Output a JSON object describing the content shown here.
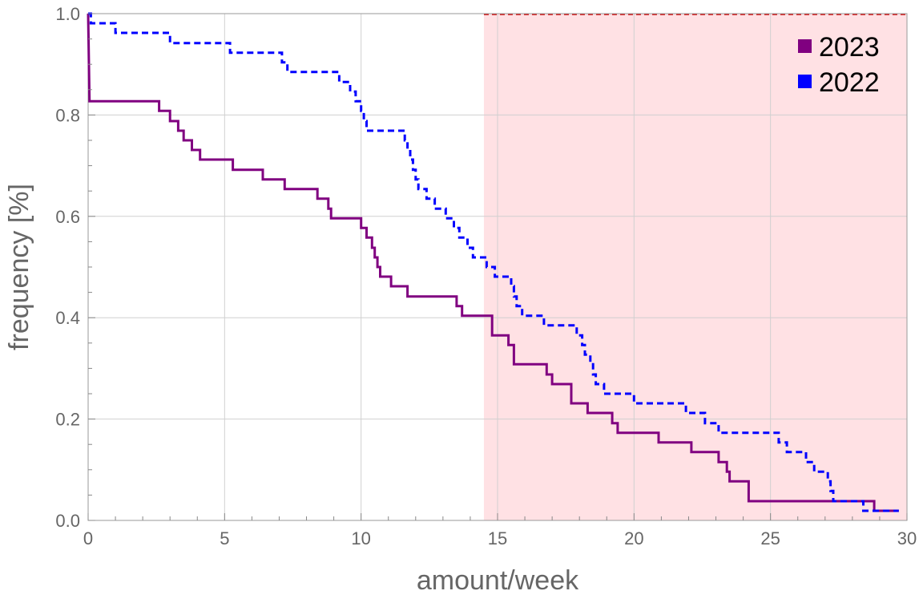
{
  "chart_data": {
    "type": "line",
    "line_shape": "step",
    "xlabel": "amount/week",
    "ylabel": "frequency [%]",
    "xlim": [
      0,
      30
    ],
    "ylim": [
      0,
      1
    ],
    "xticks": [
      0,
      5,
      10,
      15,
      20,
      25,
      30
    ],
    "yticks": [
      0.0,
      0.2,
      0.4,
      0.6,
      0.8,
      1.0
    ],
    "tick_decimals_y": 1,
    "grid": true,
    "legend_position": "top-right",
    "shaded_region": {
      "x_from": 14.5,
      "x_to": 30,
      "color": "#ffe1e4",
      "top_line_color": "#d22a2a"
    },
    "series": [
      {
        "name": "2023",
        "color": "#800080",
        "style": "solid",
        "points": [
          [
            0,
            1.0
          ],
          [
            0.05,
            0.827
          ],
          [
            2.6,
            0.827
          ],
          [
            2.6,
            0.808
          ],
          [
            3.0,
            0.808
          ],
          [
            3.0,
            0.788
          ],
          [
            3.3,
            0.788
          ],
          [
            3.3,
            0.769
          ],
          [
            3.5,
            0.769
          ],
          [
            3.5,
            0.75
          ],
          [
            3.8,
            0.75
          ],
          [
            3.8,
            0.731
          ],
          [
            4.1,
            0.731
          ],
          [
            4.1,
            0.712
          ],
          [
            5.3,
            0.712
          ],
          [
            5.3,
            0.692
          ],
          [
            6.4,
            0.692
          ],
          [
            6.4,
            0.673
          ],
          [
            7.2,
            0.673
          ],
          [
            7.2,
            0.654
          ],
          [
            8.4,
            0.654
          ],
          [
            8.4,
            0.635
          ],
          [
            8.8,
            0.635
          ],
          [
            8.8,
            0.615
          ],
          [
            8.9,
            0.615
          ],
          [
            8.9,
            0.596
          ],
          [
            10.0,
            0.596
          ],
          [
            10.0,
            0.577
          ],
          [
            10.2,
            0.577
          ],
          [
            10.2,
            0.558
          ],
          [
            10.4,
            0.558
          ],
          [
            10.4,
            0.538
          ],
          [
            10.5,
            0.538
          ],
          [
            10.5,
            0.519
          ],
          [
            10.6,
            0.519
          ],
          [
            10.6,
            0.5
          ],
          [
            10.7,
            0.5
          ],
          [
            10.7,
            0.481
          ],
          [
            11.1,
            0.481
          ],
          [
            11.1,
            0.462
          ],
          [
            11.7,
            0.462
          ],
          [
            11.7,
            0.442
          ],
          [
            13.5,
            0.442
          ],
          [
            13.5,
            0.423
          ],
          [
            13.7,
            0.423
          ],
          [
            13.7,
            0.404
          ],
          [
            14.8,
            0.404
          ],
          [
            14.8,
            0.365
          ],
          [
            15.4,
            0.365
          ],
          [
            15.4,
            0.346
          ],
          [
            15.6,
            0.346
          ],
          [
            15.6,
            0.308
          ],
          [
            16.8,
            0.308
          ],
          [
            16.8,
            0.288
          ],
          [
            17.0,
            0.288
          ],
          [
            17.0,
            0.269
          ],
          [
            17.7,
            0.269
          ],
          [
            17.7,
            0.231
          ],
          [
            18.3,
            0.231
          ],
          [
            18.3,
            0.212
          ],
          [
            19.2,
            0.212
          ],
          [
            19.2,
            0.192
          ],
          [
            19.4,
            0.192
          ],
          [
            19.4,
            0.173
          ],
          [
            20.9,
            0.173
          ],
          [
            20.9,
            0.154
          ],
          [
            22.1,
            0.154
          ],
          [
            22.1,
            0.135
          ],
          [
            23.1,
            0.135
          ],
          [
            23.1,
            0.115
          ],
          [
            23.4,
            0.115
          ],
          [
            23.4,
            0.096
          ],
          [
            23.5,
            0.096
          ],
          [
            23.5,
            0.077
          ],
          [
            24.2,
            0.077
          ],
          [
            24.2,
            0.038
          ],
          [
            28.8,
            0.038
          ],
          [
            28.8,
            0.019
          ],
          [
            29.7,
            0.019
          ]
        ]
      },
      {
        "name": "2022",
        "color": "#0000ff",
        "style": "dashed",
        "points": [
          [
            0,
            1.0
          ],
          [
            0.1,
            1.0
          ],
          [
            0.1,
            0.981
          ],
          [
            1.0,
            0.981
          ],
          [
            1.0,
            0.962
          ],
          [
            3.0,
            0.962
          ],
          [
            3.0,
            0.942
          ],
          [
            5.2,
            0.942
          ],
          [
            5.2,
            0.923
          ],
          [
            7.1,
            0.923
          ],
          [
            7.1,
            0.904
          ],
          [
            7.3,
            0.904
          ],
          [
            7.3,
            0.885
          ],
          [
            9.2,
            0.885
          ],
          [
            9.2,
            0.865
          ],
          [
            9.6,
            0.865
          ],
          [
            9.6,
            0.846
          ],
          [
            9.8,
            0.846
          ],
          [
            9.8,
            0.827
          ],
          [
            10.0,
            0.827
          ],
          [
            10.0,
            0.808
          ],
          [
            10.1,
            0.808
          ],
          [
            10.1,
            0.788
          ],
          [
            10.2,
            0.788
          ],
          [
            10.2,
            0.769
          ],
          [
            11.6,
            0.769
          ],
          [
            11.6,
            0.75
          ],
          [
            11.7,
            0.75
          ],
          [
            11.7,
            0.731
          ],
          [
            11.8,
            0.731
          ],
          [
            11.8,
            0.712
          ],
          [
            11.9,
            0.712
          ],
          [
            11.9,
            0.692
          ],
          [
            12.0,
            0.692
          ],
          [
            12.0,
            0.673
          ],
          [
            12.1,
            0.673
          ],
          [
            12.1,
            0.654
          ],
          [
            12.4,
            0.654
          ],
          [
            12.4,
            0.635
          ],
          [
            12.7,
            0.635
          ],
          [
            12.7,
            0.615
          ],
          [
            13.1,
            0.615
          ],
          [
            13.1,
            0.596
          ],
          [
            13.4,
            0.596
          ],
          [
            13.4,
            0.577
          ],
          [
            13.6,
            0.577
          ],
          [
            13.6,
            0.558
          ],
          [
            13.9,
            0.558
          ],
          [
            13.9,
            0.538
          ],
          [
            14.1,
            0.538
          ],
          [
            14.1,
            0.519
          ],
          [
            14.6,
            0.519
          ],
          [
            14.6,
            0.5
          ],
          [
            14.9,
            0.5
          ],
          [
            14.9,
            0.481
          ],
          [
            15.5,
            0.481
          ],
          [
            15.5,
            0.462
          ],
          [
            15.6,
            0.462
          ],
          [
            15.6,
            0.442
          ],
          [
            15.7,
            0.442
          ],
          [
            15.7,
            0.423
          ],
          [
            15.9,
            0.423
          ],
          [
            15.9,
            0.404
          ],
          [
            16.7,
            0.404
          ],
          [
            16.7,
            0.385
          ],
          [
            17.9,
            0.385
          ],
          [
            17.9,
            0.365
          ],
          [
            18.1,
            0.365
          ],
          [
            18.1,
            0.346
          ],
          [
            18.2,
            0.346
          ],
          [
            18.2,
            0.327
          ],
          [
            18.4,
            0.327
          ],
          [
            18.4,
            0.308
          ],
          [
            18.5,
            0.308
          ],
          [
            18.5,
            0.288
          ],
          [
            18.6,
            0.288
          ],
          [
            18.6,
            0.269
          ],
          [
            18.9,
            0.269
          ],
          [
            18.9,
            0.25
          ],
          [
            20.0,
            0.25
          ],
          [
            20.0,
            0.231
          ],
          [
            21.9,
            0.231
          ],
          [
            21.9,
            0.212
          ],
          [
            22.6,
            0.212
          ],
          [
            22.6,
            0.192
          ],
          [
            23.1,
            0.192
          ],
          [
            23.1,
            0.173
          ],
          [
            25.3,
            0.173
          ],
          [
            25.3,
            0.154
          ],
          [
            25.6,
            0.154
          ],
          [
            25.6,
            0.135
          ],
          [
            26.3,
            0.135
          ],
          [
            26.3,
            0.115
          ],
          [
            26.6,
            0.115
          ],
          [
            26.6,
            0.096
          ],
          [
            27.1,
            0.096
          ],
          [
            27.1,
            0.077
          ],
          [
            27.2,
            0.077
          ],
          [
            27.2,
            0.058
          ],
          [
            27.3,
            0.058
          ],
          [
            27.3,
            0.038
          ],
          [
            28.4,
            0.038
          ],
          [
            28.4,
            0.019
          ],
          [
            29.7,
            0.019
          ]
        ]
      }
    ]
  }
}
